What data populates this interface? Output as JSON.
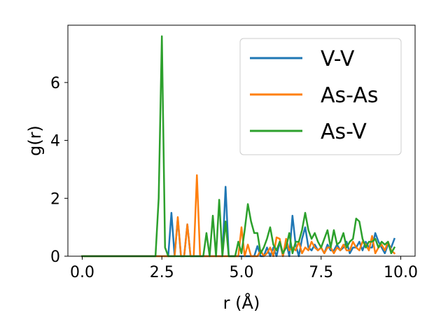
{
  "chart_data": {
    "type": "line",
    "xlabel": "r (Å)",
    "ylabel": "g(r)",
    "xlim": [
      -0.45,
      10.45
    ],
    "ylim": [
      0,
      7.98
    ],
    "xticks": [
      0.0,
      2.5,
      5.0,
      7.5,
      10.0
    ],
    "xtick_labels": [
      "0.0",
      "2.5",
      "5.0",
      "7.5",
      "10.0"
    ],
    "yticks": [
      0,
      2,
      4,
      6
    ],
    "ytick_labels": [
      "0",
      "2",
      "4",
      "6"
    ],
    "grid": false,
    "legend_position": "top-right",
    "series": [
      {
        "name": "V-V",
        "color": "#1f77b4",
        "points": [
          [
            0.0,
            0
          ],
          [
            2.6,
            0
          ],
          [
            2.7,
            0
          ],
          [
            2.8,
            1.5
          ],
          [
            2.9,
            0
          ],
          [
            3.0,
            1.3
          ],
          [
            3.1,
            0
          ],
          [
            3.2,
            0
          ],
          [
            3.3,
            1.1
          ],
          [
            3.4,
            0
          ],
          [
            3.5,
            0
          ],
          [
            3.6,
            0
          ],
          [
            3.7,
            0
          ],
          [
            3.8,
            0
          ],
          [
            3.9,
            0
          ],
          [
            4.0,
            0
          ],
          [
            4.1,
            0
          ],
          [
            4.2,
            0
          ],
          [
            4.3,
            0
          ],
          [
            4.4,
            0
          ],
          [
            4.5,
            2.4
          ],
          [
            4.6,
            0
          ],
          [
            4.7,
            0
          ],
          [
            4.8,
            0
          ],
          [
            4.9,
            0
          ],
          [
            5.0,
            0
          ],
          [
            5.1,
            0
          ],
          [
            5.2,
            0
          ],
          [
            5.3,
            0
          ],
          [
            5.4,
            0
          ],
          [
            5.5,
            0.35
          ],
          [
            5.6,
            0
          ],
          [
            5.7,
            0
          ],
          [
            5.8,
            0.3
          ],
          [
            5.9,
            0
          ],
          [
            6.0,
            0.3
          ],
          [
            6.1,
            0
          ],
          [
            6.2,
            0.5
          ],
          [
            6.3,
            0
          ],
          [
            6.4,
            0.5
          ],
          [
            6.5,
            0
          ],
          [
            6.6,
            1.4
          ],
          [
            6.7,
            0.4
          ],
          [
            6.8,
            0
          ],
          [
            6.9,
            0.6
          ],
          [
            7.0,
            1.0
          ],
          [
            7.1,
            0.3
          ],
          [
            7.2,
            0.2
          ],
          [
            7.3,
            0.4
          ],
          [
            7.4,
            0.2
          ],
          [
            7.5,
            0.3
          ],
          [
            7.6,
            0.1
          ],
          [
            7.7,
            0.4
          ],
          [
            7.8,
            0.2
          ],
          [
            7.9,
            0.2
          ],
          [
            8.0,
            0.4
          ],
          [
            8.1,
            0.2
          ],
          [
            8.2,
            0.3
          ],
          [
            8.3,
            0.5
          ],
          [
            8.4,
            0.1
          ],
          [
            8.5,
            0.3
          ],
          [
            8.6,
            0.3
          ],
          [
            8.7,
            0.5
          ],
          [
            8.8,
            0.2
          ],
          [
            8.9,
            0.5
          ],
          [
            9.0,
            0.3
          ],
          [
            9.1,
            0.3
          ],
          [
            9.2,
            0.8
          ],
          [
            9.3,
            0.5
          ],
          [
            9.4,
            0.3
          ],
          [
            9.5,
            0.1
          ],
          [
            9.6,
            0.4
          ],
          [
            9.7,
            0.3
          ],
          [
            9.8,
            0.6
          ]
        ]
      },
      {
        "name": "As-As",
        "color": "#ff7f0e",
        "points": [
          [
            0.0,
            0
          ],
          [
            2.8,
            0
          ],
          [
            2.9,
            0
          ],
          [
            3.0,
            1.35
          ],
          [
            3.1,
            0
          ],
          [
            3.2,
            0
          ],
          [
            3.3,
            1.1
          ],
          [
            3.4,
            0
          ],
          [
            3.5,
            0
          ],
          [
            3.6,
            2.8
          ],
          [
            3.7,
            0
          ],
          [
            3.8,
            0
          ],
          [
            3.9,
            0
          ],
          [
            4.0,
            0
          ],
          [
            4.1,
            0
          ],
          [
            4.2,
            0
          ],
          [
            4.3,
            0
          ],
          [
            4.4,
            0
          ],
          [
            4.5,
            0
          ],
          [
            4.6,
            0
          ],
          [
            4.7,
            0
          ],
          [
            4.8,
            0
          ],
          [
            4.9,
            0
          ],
          [
            5.0,
            1.0
          ],
          [
            5.1,
            0
          ],
          [
            5.2,
            0.4
          ],
          [
            5.3,
            0
          ],
          [
            5.4,
            0
          ],
          [
            5.5,
            0
          ],
          [
            5.6,
            0.2
          ],
          [
            5.7,
            0
          ],
          [
            5.8,
            0.1
          ],
          [
            5.9,
            0.3
          ],
          [
            6.0,
            0
          ],
          [
            6.1,
            0.65
          ],
          [
            6.2,
            0.6
          ],
          [
            6.3,
            0
          ],
          [
            6.4,
            0.6
          ],
          [
            6.5,
            0.2
          ],
          [
            6.6,
            0.3
          ],
          [
            6.7,
            0.2
          ],
          [
            6.8,
            0.5
          ],
          [
            6.9,
            0.1
          ],
          [
            7.0,
            0.3
          ],
          [
            7.1,
            0.2
          ],
          [
            7.2,
            0.5
          ],
          [
            7.3,
            0.3
          ],
          [
            7.4,
            0.2
          ],
          [
            7.5,
            0.3
          ],
          [
            7.6,
            0.1
          ],
          [
            7.7,
            0.3
          ],
          [
            7.8,
            0.3
          ],
          [
            7.9,
            0.1
          ],
          [
            8.0,
            0.3
          ],
          [
            8.1,
            0.2
          ],
          [
            8.2,
            0.4
          ],
          [
            8.3,
            0.2
          ],
          [
            8.4,
            0.2
          ],
          [
            8.5,
            0.5
          ],
          [
            8.6,
            0.3
          ],
          [
            8.7,
            0.2
          ],
          [
            8.8,
            0.5
          ],
          [
            8.9,
            0.4
          ],
          [
            9.0,
            0.2
          ],
          [
            9.1,
            0.7
          ],
          [
            9.2,
            0.1
          ],
          [
            9.3,
            0.3
          ],
          [
            9.4,
            0.4
          ],
          [
            9.5,
            0.2
          ],
          [
            9.6,
            0.5
          ],
          [
            9.7,
            0.2
          ],
          [
            9.8,
            0.1
          ]
        ]
      },
      {
        "name": "As-V",
        "color": "#2ca02c",
        "points": [
          [
            0.0,
            0
          ],
          [
            2.2,
            0
          ],
          [
            2.3,
            0
          ],
          [
            2.4,
            2.0
          ],
          [
            2.5,
            7.6
          ],
          [
            2.6,
            0.3
          ],
          [
            2.7,
            0
          ],
          [
            2.8,
            0
          ],
          [
            2.9,
            0
          ],
          [
            3.0,
            0
          ],
          [
            3.1,
            0
          ],
          [
            3.2,
            0
          ],
          [
            3.3,
            0
          ],
          [
            3.4,
            0
          ],
          [
            3.5,
            0
          ],
          [
            3.6,
            0
          ],
          [
            3.7,
            0
          ],
          [
            3.8,
            0
          ],
          [
            3.9,
            0.8
          ],
          [
            4.0,
            0
          ],
          [
            4.1,
            1.4
          ],
          [
            4.2,
            0
          ],
          [
            4.3,
            1.95
          ],
          [
            4.4,
            0
          ],
          [
            4.5,
            1.2
          ],
          [
            4.6,
            0
          ],
          [
            4.7,
            0
          ],
          [
            4.8,
            0
          ],
          [
            4.9,
            0.5
          ],
          [
            5.0,
            0.1
          ],
          [
            5.1,
            0.9
          ],
          [
            5.2,
            1.8
          ],
          [
            5.3,
            1.2
          ],
          [
            5.4,
            0.8
          ],
          [
            5.5,
            0.8
          ],
          [
            5.6,
            0.1
          ],
          [
            5.7,
            0.3
          ],
          [
            5.8,
            0.6
          ],
          [
            5.9,
            1.0
          ],
          [
            6.0,
            0.4
          ],
          [
            6.1,
            0.2
          ],
          [
            6.2,
            0.5
          ],
          [
            6.3,
            0.1
          ],
          [
            6.4,
            0.3
          ],
          [
            6.5,
            0.8
          ],
          [
            6.6,
            0.1
          ],
          [
            6.7,
            0.5
          ],
          [
            6.8,
            0.5
          ],
          [
            6.9,
            0.9
          ],
          [
            7.0,
            1.5
          ],
          [
            7.1,
            0.9
          ],
          [
            7.2,
            0.6
          ],
          [
            7.3,
            0.8
          ],
          [
            7.4,
            0.5
          ],
          [
            7.5,
            0.3
          ],
          [
            7.6,
            0.6
          ],
          [
            7.7,
            0.9
          ],
          [
            7.8,
            0.3
          ],
          [
            7.9,
            0.9
          ],
          [
            8.0,
            0.4
          ],
          [
            8.1,
            0.5
          ],
          [
            8.2,
            0.8
          ],
          [
            8.3,
            0.3
          ],
          [
            8.4,
            0.5
          ],
          [
            8.5,
            0.6
          ],
          [
            8.6,
            1.3
          ],
          [
            8.7,
            1.2
          ],
          [
            8.8,
            0.6
          ],
          [
            8.9,
            0.3
          ],
          [
            9.0,
            0.5
          ],
          [
            9.1,
            0.5
          ],
          [
            9.2,
            0.6
          ],
          [
            9.3,
            0.3
          ],
          [
            9.4,
            0.5
          ],
          [
            9.5,
            0.4
          ],
          [
            9.6,
            0.5
          ],
          [
            9.7,
            0.1
          ],
          [
            9.8,
            0.3
          ]
        ]
      }
    ]
  }
}
